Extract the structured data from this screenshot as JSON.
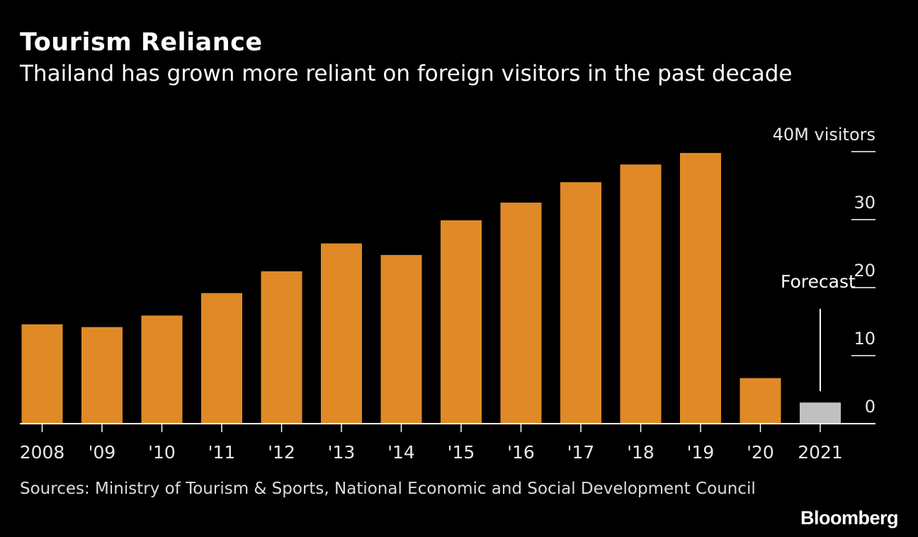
{
  "header": {
    "title": "Tourism Reliance",
    "subtitle": "Thailand has grown more reliant on foreign visitors in the past decade"
  },
  "footer": {
    "source": "Sources: Ministry of Tourism & Sports, National Economic and Social Development Council",
    "brand": "Bloomberg"
  },
  "colors": {
    "background": "#000000",
    "actual_bar": "#df8a26",
    "forecast_bar": "#c0c0c0",
    "axis": "#ffffff",
    "text": "#ffffff"
  },
  "chart_data": {
    "type": "bar",
    "title": "Tourism Reliance",
    "subtitle": "Thailand has grown more reliant on foreign visitors in the past decade",
    "categories": [
      "2008",
      "'09",
      "'10",
      "'11",
      "'12",
      "'13",
      "'14",
      "'15",
      "'16",
      "'17",
      "'18",
      "'19",
      "'20",
      "2021"
    ],
    "series": [
      {
        "values": [
          14.6,
          14.2,
          15.9,
          19.2,
          22.4,
          26.5,
          24.8,
          29.9,
          32.5,
          35.5,
          38.1,
          39.8,
          6.7,
          3.1
        ]
      }
    ],
    "forecast_categories": [
      "2021"
    ],
    "annotation": "Forecast",
    "y_tick_labels": [
      "0",
      "10",
      "20",
      "30",
      "40M visitors"
    ],
    "y_ticks": [
      0,
      10,
      20,
      30,
      40
    ],
    "ylim": [
      0,
      40
    ],
    "y_axis_position": "right",
    "grid": false,
    "legend": "none"
  }
}
